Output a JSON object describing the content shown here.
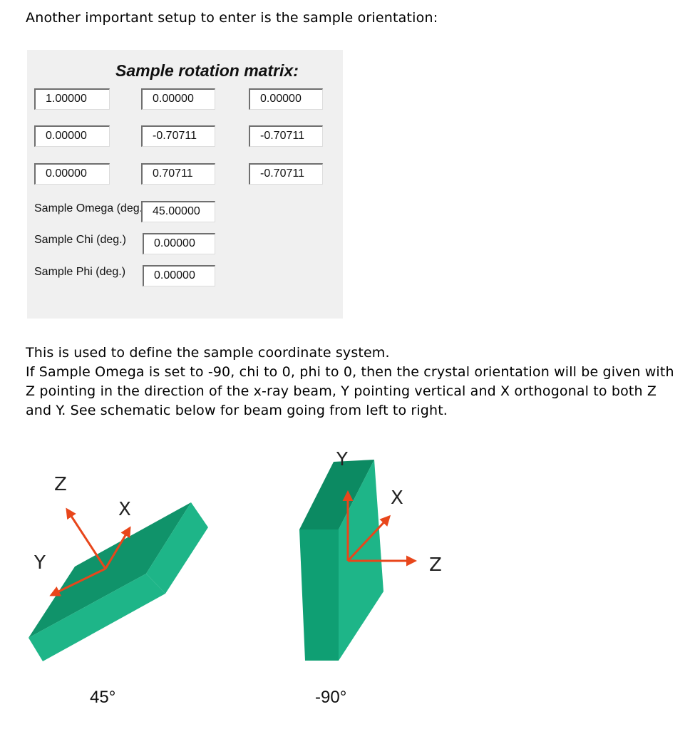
{
  "intro": "Another important setup to enter is the sample orientation:",
  "panel": {
    "title": "Sample rotation matrix:",
    "matrix": [
      [
        "1.00000",
        "0.00000",
        "0.00000"
      ],
      [
        "0.00000",
        "-0.70711",
        "-0.70711"
      ],
      [
        "0.00000",
        "0.70711",
        "-0.70711"
      ]
    ],
    "omega": {
      "label": "Sample Omega (deg.)",
      "value": "45.00000"
    },
    "chi": {
      "label": "Sample Chi (deg.)",
      "value": "0.00000"
    },
    "phi": {
      "label": "Sample Phi (deg.)",
      "value": "0.00000"
    }
  },
  "paragraph": {
    "line1": "This is used to define the sample coordinate system.",
    "line2": "If Sample Omega is set to -90, chi to 0, phi to 0, then the crystal orientation will be given with Z pointing in the direction of the x-ray beam, Y pointing vertical and X orthogonal to both Z and Y. See schematic below for beam going from left to right."
  },
  "figure": {
    "left": {
      "caption": "45°",
      "labels": {
        "z": "Z",
        "x": "X",
        "y": "Y"
      }
    },
    "right": {
      "caption": "-90°",
      "labels": {
        "y": "Y",
        "x": "X",
        "z": "Z"
      }
    },
    "colors": {
      "face_top": "#10936a",
      "face_front": "#1eb588",
      "face_side": "#0c8660",
      "arrow": "#e8461b"
    }
  }
}
